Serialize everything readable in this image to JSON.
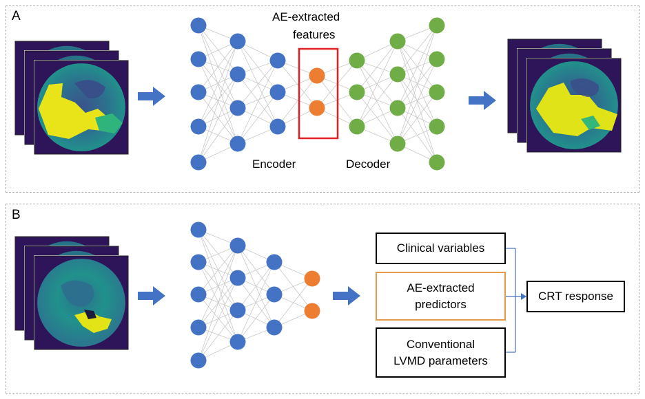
{
  "panel_a": {
    "letter": "A",
    "features_label_line1": "AE-extracted",
    "features_label_line2": "features",
    "encoder_label": "Encoder",
    "decoder_label": "Decoder"
  },
  "panel_b": {
    "letter": "B",
    "clinical_box": "Clinical variables",
    "ae_box_line1": "AE-extracted",
    "ae_box_line2": "predictors",
    "conventional_box_line1": "Conventional",
    "conventional_box_line2": "LVMD parameters",
    "outcome_box": "CRT response"
  },
  "colors": {
    "encoder_node": "#4472c4",
    "latent_node": "#ed7d31",
    "decoder_node": "#70ad47",
    "arrow": "#4472c4",
    "highlight_box": "#e02020",
    "ae_predictor_border": "#e59a4a"
  }
}
